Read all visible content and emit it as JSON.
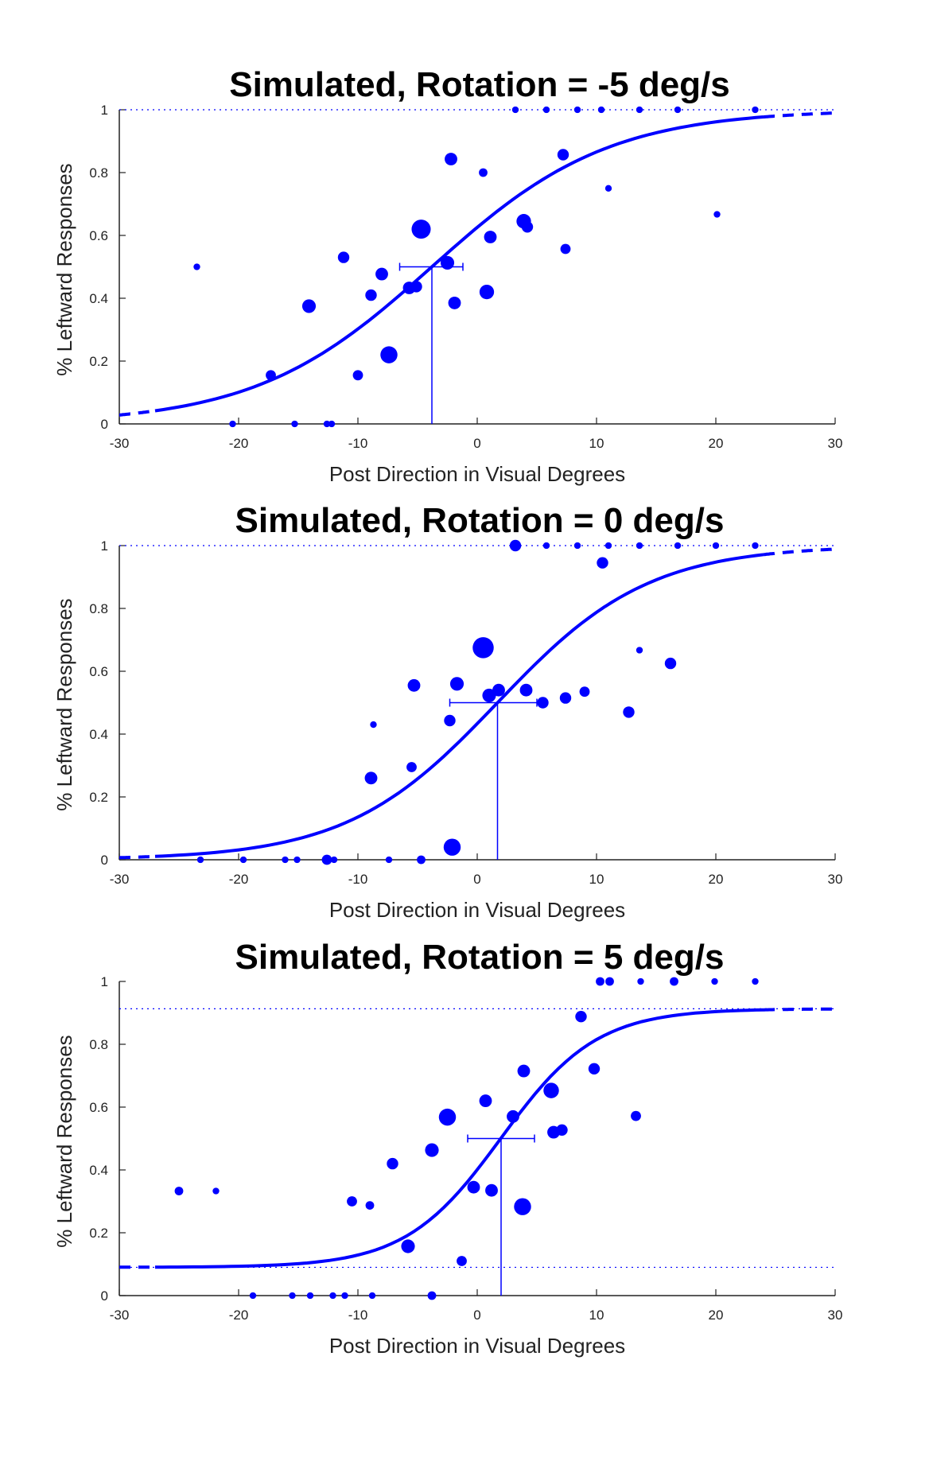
{
  "colors": {
    "series": "#0000ff",
    "axis": "#222222",
    "text": "#000000"
  },
  "chart_data": [
    {
      "type": "scatter",
      "title": "Simulated, Rotation = -5 deg/s",
      "xlabel": "Post Direction in Visual Degrees",
      "ylabel": "% Leftward Responses",
      "xlim": [
        -30,
        30
      ],
      "ylim": [
        0,
        1
      ],
      "xticks": [
        -30,
        -20,
        -10,
        0,
        10,
        20,
        30
      ],
      "yticks": [
        0,
        0.2,
        0.4,
        0.6,
        0.8,
        1
      ],
      "grid": false,
      "legend": "none",
      "asymptotes": {
        "lower": 0,
        "upper": 1
      },
      "fit": {
        "model": "logistic",
        "midpoint": -3.8,
        "slope": 0.135,
        "lower": 0,
        "upper": 1,
        "fit_range": [
          -27,
          24
        ]
      },
      "threshold": {
        "x": -3.8,
        "y": 0.5,
        "ci": [
          -6.5,
          -1.2
        ]
      },
      "points": [
        {
          "x": -23.5,
          "y": 0.5,
          "n": 1
        },
        {
          "x": -20.5,
          "y": 0,
          "n": 1
        },
        {
          "x": -17.3,
          "y": 0.155,
          "n": 3
        },
        {
          "x": -15.3,
          "y": 0,
          "n": 1
        },
        {
          "x": -14.1,
          "y": 0.375,
          "n": 6
        },
        {
          "x": -12.6,
          "y": 0,
          "n": 1
        },
        {
          "x": -12.2,
          "y": 0,
          "n": 1
        },
        {
          "x": -11.2,
          "y": 0.53,
          "n": 4
        },
        {
          "x": -10.0,
          "y": 0.155,
          "n": 3
        },
        {
          "x": -8.9,
          "y": 0.41,
          "n": 4
        },
        {
          "x": -8.0,
          "y": 0.477,
          "n": 5
        },
        {
          "x": -7.4,
          "y": 0.22,
          "n": 10
        },
        {
          "x": -5.7,
          "y": 0.433,
          "n": 5
        },
        {
          "x": -5.1,
          "y": 0.437,
          "n": 4
        },
        {
          "x": -4.7,
          "y": 0.62,
          "n": 13
        },
        {
          "x": -2.5,
          "y": 0.513,
          "n": 6
        },
        {
          "x": -2.2,
          "y": 0.843,
          "n": 5
        },
        {
          "x": -1.9,
          "y": 0.385,
          "n": 5
        },
        {
          "x": 0.5,
          "y": 0.8,
          "n": 2
        },
        {
          "x": 0.8,
          "y": 0.42,
          "n": 7
        },
        {
          "x": 1.1,
          "y": 0.595,
          "n": 5
        },
        {
          "x": 3.2,
          "y": 1,
          "n": 1
        },
        {
          "x": 3.9,
          "y": 0.645,
          "n": 7
        },
        {
          "x": 4.2,
          "y": 0.627,
          "n": 4
        },
        {
          "x": 5.8,
          "y": 1,
          "n": 1
        },
        {
          "x": 7.2,
          "y": 0.857,
          "n": 4
        },
        {
          "x": 7.4,
          "y": 0.557,
          "n": 3
        },
        {
          "x": 8.4,
          "y": 1,
          "n": 1
        },
        {
          "x": 10.4,
          "y": 1,
          "n": 1
        },
        {
          "x": 11.0,
          "y": 0.75,
          "n": 1
        },
        {
          "x": 13.6,
          "y": 1,
          "n": 1
        },
        {
          "x": 16.8,
          "y": 1,
          "n": 1
        },
        {
          "x": 20.1,
          "y": 0.667,
          "n": 1
        },
        {
          "x": 23.3,
          "y": 1,
          "n": 1
        }
      ]
    },
    {
      "type": "scatter",
      "title": "Simulated, Rotation = 0 deg/s",
      "xlabel": "Post Direction in Visual Degrees",
      "ylabel": "% Leftward Responses",
      "xlim": [
        -30,
        30
      ],
      "ylim": [
        0,
        1
      ],
      "xticks": [
        -30,
        -20,
        -10,
        0,
        10,
        20,
        30
      ],
      "yticks": [
        0,
        0.2,
        0.4,
        0.6,
        0.8,
        1
      ],
      "grid": false,
      "legend": "none",
      "asymptotes": {
        "lower": 0,
        "upper": 1
      },
      "fit": {
        "model": "logistic",
        "midpoint": 1.7,
        "slope": 0.158,
        "lower": 0,
        "upper": 1,
        "fit_range": [
          -27,
          24
        ]
      },
      "threshold": {
        "x": 1.7,
        "y": 0.5,
        "ci": [
          -2.3,
          5.0
        ]
      },
      "points": [
        {
          "x": -23.2,
          "y": 0,
          "n": 1
        },
        {
          "x": -19.6,
          "y": 0,
          "n": 1
        },
        {
          "x": -16.1,
          "y": 0,
          "n": 1
        },
        {
          "x": -15.1,
          "y": 0,
          "n": 1
        },
        {
          "x": -12.6,
          "y": 0,
          "n": 3
        },
        {
          "x": -12.0,
          "y": 0,
          "n": 1
        },
        {
          "x": -8.9,
          "y": 0.26,
          "n": 5
        },
        {
          "x": -8.7,
          "y": 0.43,
          "n": 1
        },
        {
          "x": -7.4,
          "y": 0,
          "n": 1
        },
        {
          "x": -5.5,
          "y": 0.295,
          "n": 3
        },
        {
          "x": -5.3,
          "y": 0.555,
          "n": 5
        },
        {
          "x": -4.7,
          "y": 0,
          "n": 2
        },
        {
          "x": -2.3,
          "y": 0.443,
          "n": 4
        },
        {
          "x": -2.1,
          "y": 0.04,
          "n": 10
        },
        {
          "x": -1.7,
          "y": 0.56,
          "n": 6
        },
        {
          "x": 0.5,
          "y": 0.675,
          "n": 16
        },
        {
          "x": 1.0,
          "y": 0.523,
          "n": 6
        },
        {
          "x": 1.8,
          "y": 0.54,
          "n": 5
        },
        {
          "x": 3.2,
          "y": 1,
          "n": 4
        },
        {
          "x": 4.1,
          "y": 0.54,
          "n": 5
        },
        {
          "x": 5.5,
          "y": 0.5,
          "n": 4
        },
        {
          "x": 5.8,
          "y": 1,
          "n": 1
        },
        {
          "x": 7.4,
          "y": 0.515,
          "n": 4
        },
        {
          "x": 8.4,
          "y": 1,
          "n": 1
        },
        {
          "x": 9.0,
          "y": 0.535,
          "n": 3
        },
        {
          "x": 10.5,
          "y": 0.945,
          "n": 4
        },
        {
          "x": 11.0,
          "y": 1,
          "n": 1
        },
        {
          "x": 12.7,
          "y": 0.47,
          "n": 4
        },
        {
          "x": 13.6,
          "y": 0.667,
          "n": 1
        },
        {
          "x": 13.6,
          "y": 1,
          "n": 1
        },
        {
          "x": 16.2,
          "y": 0.625,
          "n": 4
        },
        {
          "x": 16.8,
          "y": 1,
          "n": 1
        },
        {
          "x": 20.0,
          "y": 1,
          "n": 1
        },
        {
          "x": 23.3,
          "y": 1,
          "n": 1
        }
      ]
    },
    {
      "type": "scatter",
      "title": "Simulated, Rotation = 5 deg/s",
      "xlabel": "Post Direction in Visual Degrees",
      "ylabel": "% Leftward Responses",
      "xlim": [
        -30,
        30
      ],
      "ylim": [
        0,
        1
      ],
      "xticks": [
        -30,
        -20,
        -10,
        0,
        10,
        20,
        30
      ],
      "yticks": [
        0,
        0.2,
        0.4,
        0.6,
        0.8,
        1
      ],
      "grid": false,
      "legend": "none",
      "asymptotes": {
        "lower": 0.09,
        "upper": 0.913
      },
      "fit": {
        "model": "logistic",
        "midpoint": 2.0,
        "slope": 0.25,
        "lower": 0.09,
        "upper": 0.913,
        "fit_range": [
          -27,
          24
        ]
      },
      "threshold": {
        "x": 2.0,
        "y": 0.5,
        "ci": [
          -0.8,
          4.8
        ]
      },
      "points": [
        {
          "x": -25.0,
          "y": 0.333,
          "n": 2
        },
        {
          "x": -21.9,
          "y": 0.333,
          "n": 1
        },
        {
          "x": -18.8,
          "y": 0,
          "n": 1
        },
        {
          "x": -15.5,
          "y": 0,
          "n": 1
        },
        {
          "x": -14.0,
          "y": 0,
          "n": 1
        },
        {
          "x": -12.1,
          "y": 0,
          "n": 1
        },
        {
          "x": -11.1,
          "y": 0,
          "n": 1
        },
        {
          "x": -10.5,
          "y": 0.3,
          "n": 3
        },
        {
          "x": -9.0,
          "y": 0.287,
          "n": 2
        },
        {
          "x": -8.8,
          "y": 0,
          "n": 1
        },
        {
          "x": -7.1,
          "y": 0.42,
          "n": 4
        },
        {
          "x": -5.8,
          "y": 0.157,
          "n": 6
        },
        {
          "x": -3.8,
          "y": 0.463,
          "n": 6
        },
        {
          "x": -3.8,
          "y": 0,
          "n": 2
        },
        {
          "x": -2.5,
          "y": 0.568,
          "n": 10
        },
        {
          "x": -1.3,
          "y": 0.11,
          "n": 3
        },
        {
          "x": -0.3,
          "y": 0.345,
          "n": 5
        },
        {
          "x": 0.7,
          "y": 0.62,
          "n": 5
        },
        {
          "x": 1.2,
          "y": 0.335,
          "n": 5
        },
        {
          "x": 3.0,
          "y": 0.57,
          "n": 5
        },
        {
          "x": 3.8,
          "y": 0.283,
          "n": 10
        },
        {
          "x": 3.9,
          "y": 0.715,
          "n": 5
        },
        {
          "x": 6.2,
          "y": 0.653,
          "n": 8
        },
        {
          "x": 6.4,
          "y": 0.52,
          "n": 5
        },
        {
          "x": 7.1,
          "y": 0.527,
          "n": 4
        },
        {
          "x": 8.7,
          "y": 0.888,
          "n": 4
        },
        {
          "x": 9.8,
          "y": 0.722,
          "n": 4
        },
        {
          "x": 10.3,
          "y": 1,
          "n": 2
        },
        {
          "x": 11.1,
          "y": 1,
          "n": 2
        },
        {
          "x": 13.3,
          "y": 0.572,
          "n": 3
        },
        {
          "x": 13.7,
          "y": 1,
          "n": 1
        },
        {
          "x": 16.5,
          "y": 1,
          "n": 2
        },
        {
          "x": 19.9,
          "y": 1,
          "n": 1
        },
        {
          "x": 23.3,
          "y": 1,
          "n": 1
        }
      ]
    }
  ]
}
